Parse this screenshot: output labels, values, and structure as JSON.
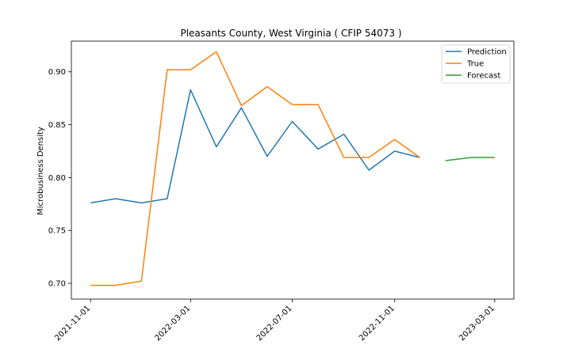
{
  "chart_data": {
    "type": "line",
    "title": "Pleasants County, West Virginia ( CFIP 54073 )",
    "xlabel": "",
    "ylabel": "Microbusiness Density",
    "x_ticks": [
      "2021-11-01",
      "2022-03-01",
      "2022-07-01",
      "2022-11-01",
      "2023-03-01"
    ],
    "y_ticks": [
      "0.70",
      "0.75",
      "0.80",
      "0.85",
      "0.90"
    ],
    "xlim": [
      "2021-10-09",
      "2023-03-24"
    ],
    "ylim": [
      0.685,
      0.929
    ],
    "grid": false,
    "legend_position": "top-right",
    "series": [
      {
        "name": "Prediction",
        "color": "#1f77b4",
        "x": [
          "2021-11-01",
          "2021-12-01",
          "2022-01-01",
          "2022-02-01",
          "2022-03-01",
          "2022-04-01",
          "2022-05-01",
          "2022-06-01",
          "2022-07-01",
          "2022-08-01",
          "2022-09-01",
          "2022-10-01",
          "2022-11-01",
          "2022-12-01"
        ],
        "values": [
          0.776,
          0.78,
          0.776,
          0.78,
          0.883,
          0.829,
          0.866,
          0.82,
          0.853,
          0.827,
          0.841,
          0.807,
          0.825,
          0.819
        ]
      },
      {
        "name": "True",
        "color": "#ff7f0e",
        "x": [
          "2021-11-01",
          "2021-12-01",
          "2022-01-01",
          "2022-02-01",
          "2022-03-01",
          "2022-04-01",
          "2022-05-01",
          "2022-06-01",
          "2022-07-01",
          "2022-08-01",
          "2022-09-01",
          "2022-10-01",
          "2022-11-01",
          "2022-12-01"
        ],
        "values": [
          0.698,
          0.698,
          0.702,
          0.902,
          0.902,
          0.919,
          0.868,
          0.886,
          0.869,
          0.869,
          0.819,
          0.819,
          0.836,
          0.819
        ]
      },
      {
        "name": "Forecast",
        "color": "#2ca02c",
        "x": [
          "2023-01-01",
          "2023-02-01",
          "2023-03-01"
        ],
        "values": [
          0.816,
          0.819,
          0.819
        ]
      }
    ]
  }
}
